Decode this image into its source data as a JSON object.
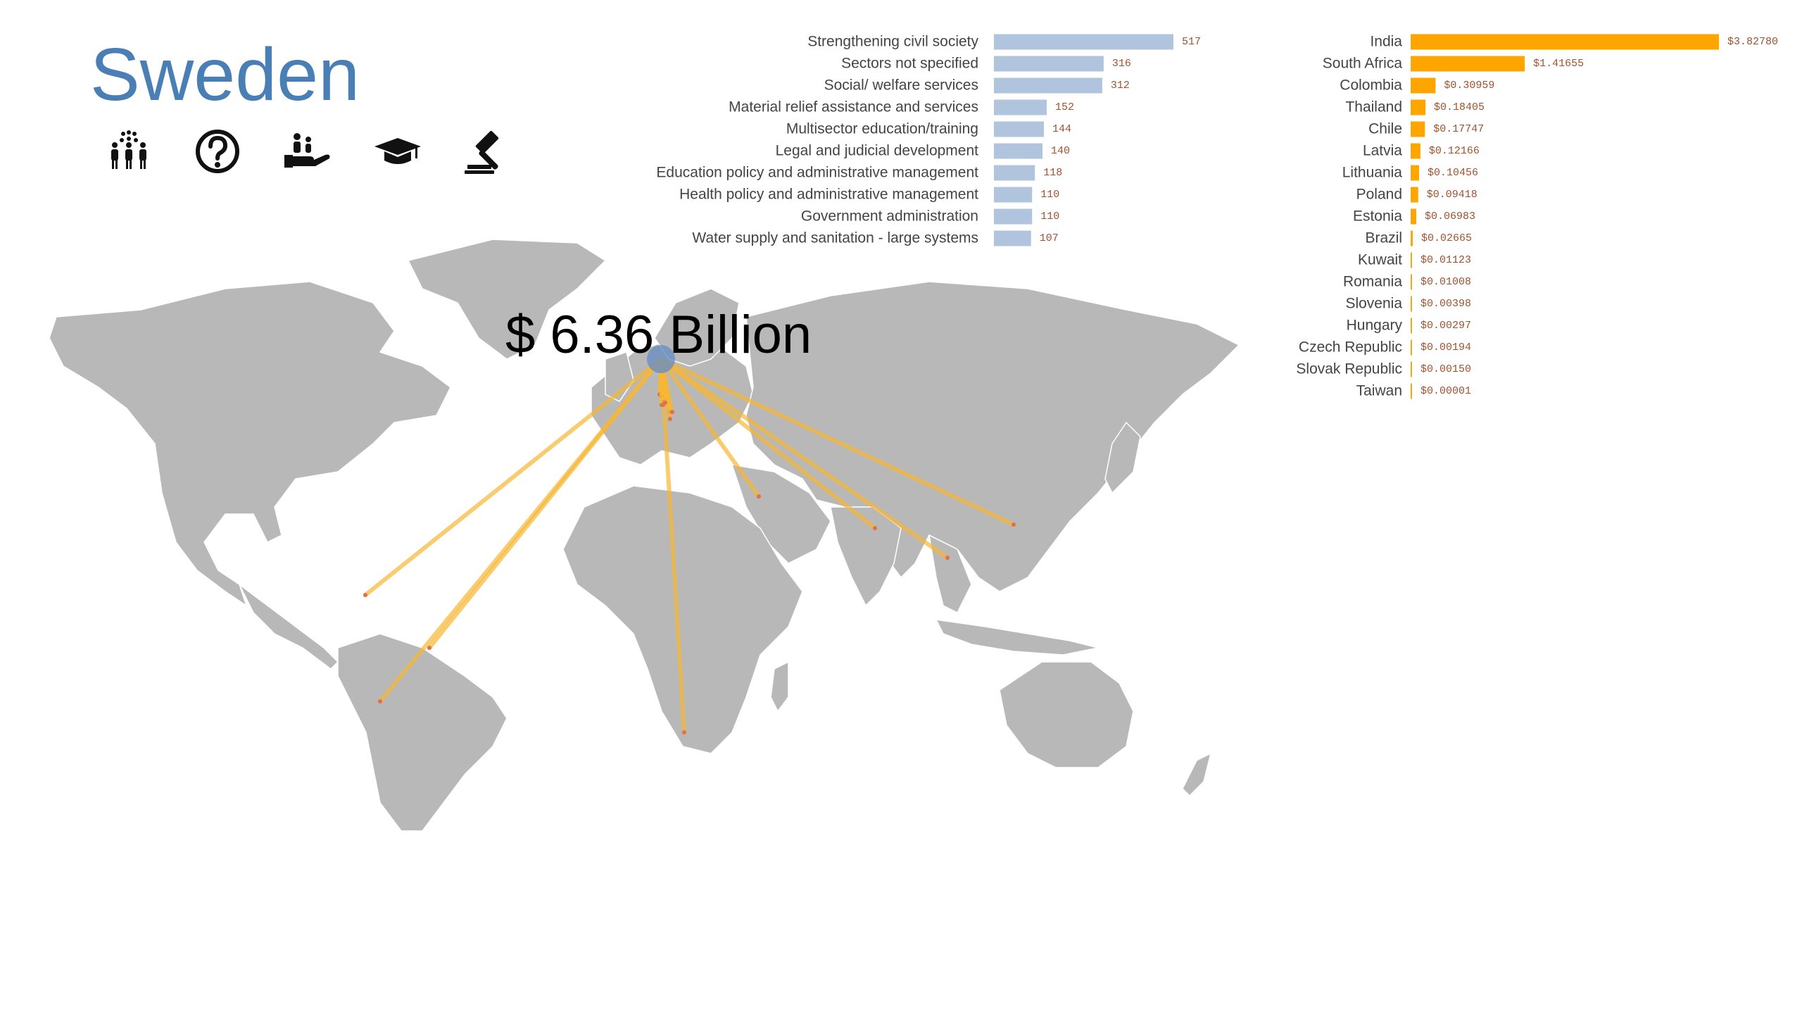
{
  "title": "Sweden",
  "total_label": "$ 6.36 Billion",
  "icons": [
    "population-icon",
    "question-icon",
    "hand-giving-icon",
    "graduation-cap-icon",
    "gavel-icon"
  ],
  "colors": {
    "title": "#4a7fb5",
    "sector_bars": "#b0c4de",
    "recipient_bars": "#ffa500",
    "value_text": "#a0522d",
    "land": "#b8b8b8",
    "flow_lines": "#f7b733",
    "origin": "#6a8fc0"
  },
  "chart_data": [
    {
      "type": "bar",
      "orientation": "horizontal",
      "categories": [
        "Strengthening civil society",
        "Sectors not specified",
        "Social/ welfare services",
        "Material relief assistance and services",
        "Multisector education/training",
        "Legal and judicial development",
        "Education policy and administrative management",
        "Health policy and administrative management",
        "Government administration",
        "Water supply and sanitation - large systems"
      ],
      "values": [
        517,
        316,
        312,
        152,
        144,
        140,
        118,
        110,
        110,
        107
      ],
      "value_labels": [
        "517",
        "316",
        "312",
        "152",
        "144",
        "140",
        "118",
        "110",
        "110",
        "107"
      ]
    },
    {
      "type": "bar",
      "orientation": "horizontal",
      "categories": [
        "India",
        "South Africa",
        "Colombia",
        "Thailand",
        "Chile",
        "Latvia",
        "Lithuania",
        "Poland",
        "Estonia",
        "Brazil",
        "Kuwait",
        "Romania",
        "Slovenia",
        "Hungary",
        "Czech Republic",
        "Slovak Republic",
        "Taiwan"
      ],
      "values": [
        3.8278,
        1.41655,
        0.30959,
        0.18405,
        0.17747,
        0.12166,
        0.10456,
        0.09418,
        0.06983,
        0.02665,
        0.01123,
        0.01008,
        0.00398,
        0.00297,
        0.00194,
        0.0015,
        1e-05
      ],
      "value_labels": [
        "$3.82780",
        "$1.41655",
        "$0.30959",
        "$0.18405",
        "$0.17747",
        "$0.12166",
        "$0.10456",
        "$0.09418",
        "$0.06983",
        "$0.02665",
        "$0.01123",
        "$0.01008",
        "$0.00398",
        "$0.00297",
        "$0.00194",
        "$0.00150",
        "$0.00001"
      ]
    }
  ]
}
